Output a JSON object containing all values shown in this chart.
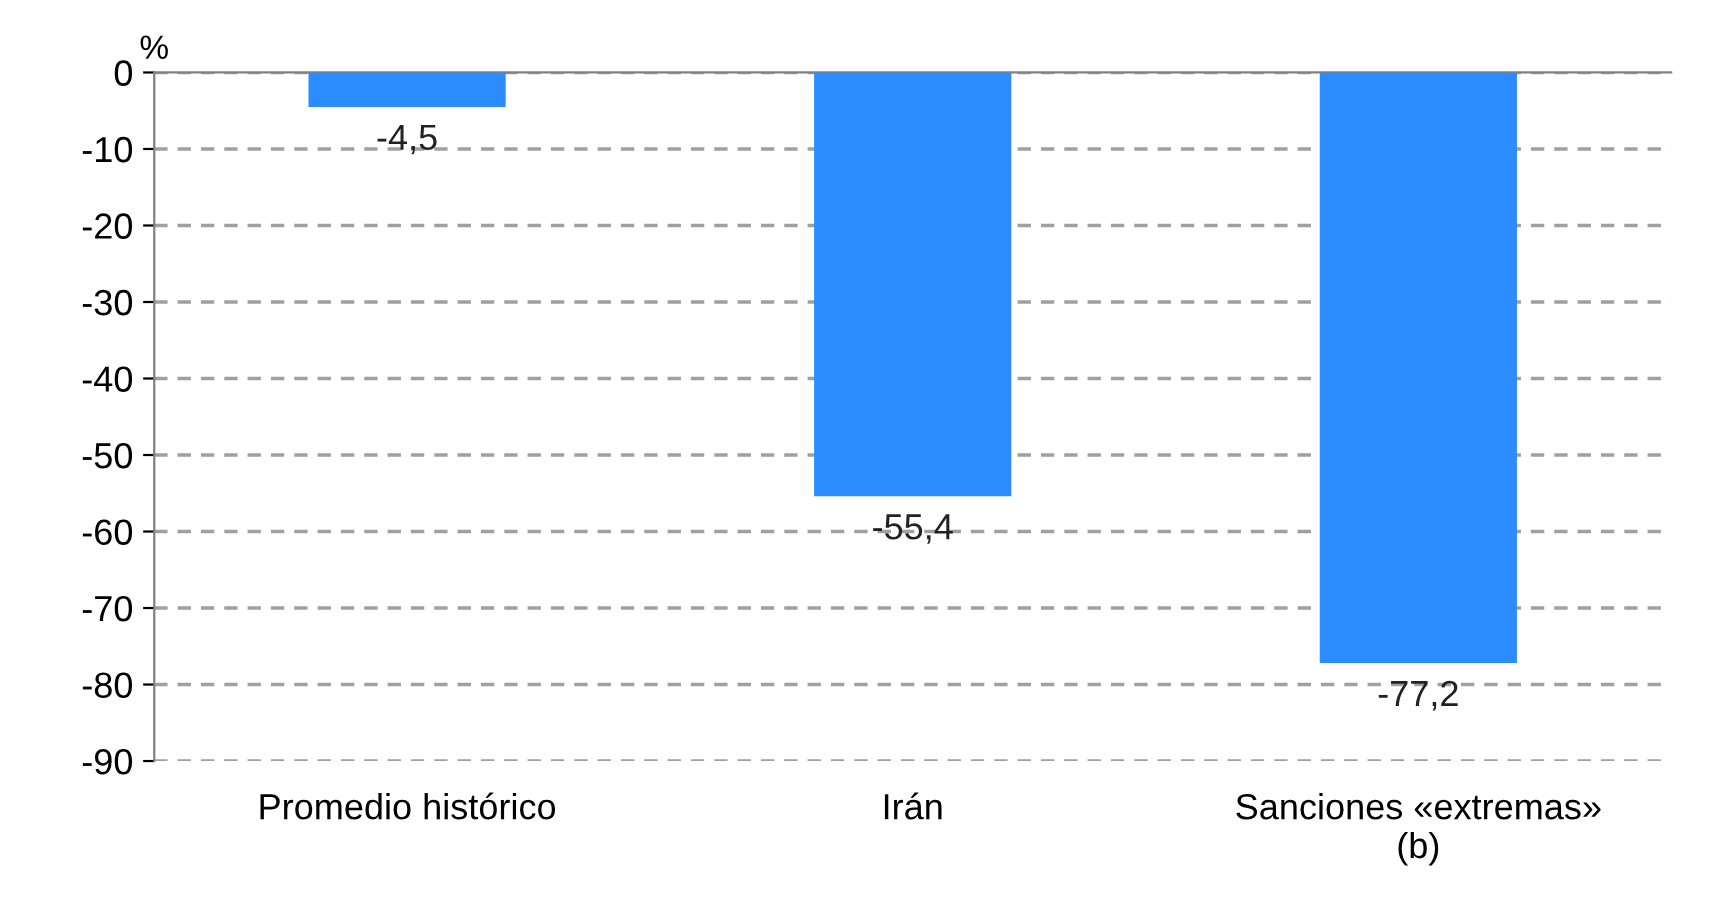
{
  "chart_data": {
    "type": "bar",
    "ylabel": "%",
    "categories": [
      "Promedio histórico",
      "Irán",
      "Sanciones «extremas»\n(b)"
    ],
    "values": [
      -4.5,
      -55.4,
      -77.2
    ],
    "color": "#2b8cff",
    "value_labels": [
      "-4,5",
      "-55,4",
      "-77,2"
    ],
    "ylim": [
      -90,
      0
    ],
    "yticks": [
      0,
      -10,
      -20,
      -30,
      -40,
      -50,
      -60,
      -70,
      -80,
      -90
    ],
    "grid": "y",
    "line_style": "dashed"
  }
}
